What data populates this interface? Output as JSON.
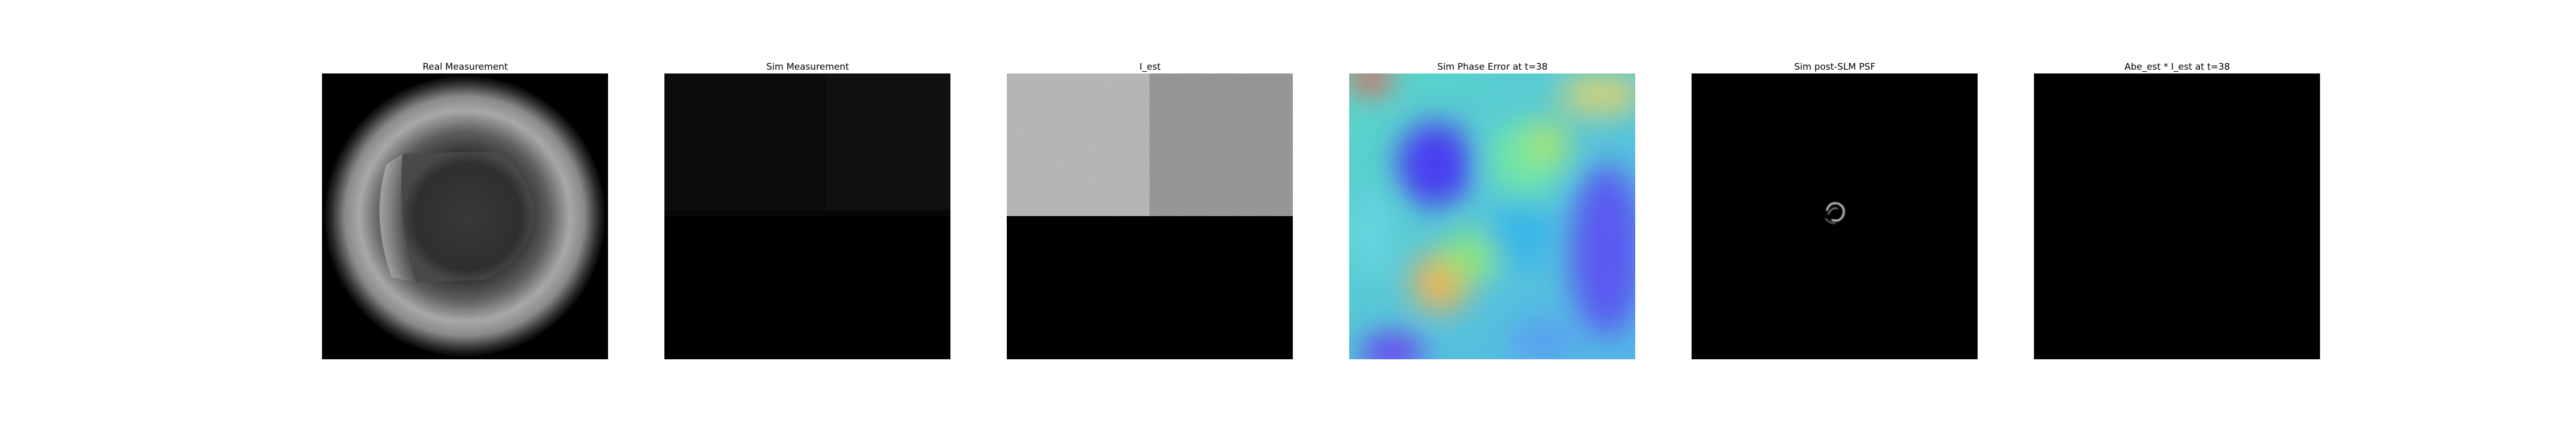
{
  "figure": {
    "panels": [
      {
        "title": "Real Measurement",
        "kind": "grayscale-intensity"
      },
      {
        "title": "Sim Measurement",
        "kind": "grayscale-intensity"
      },
      {
        "title": "I_est",
        "kind": "grayscale-intensity"
      },
      {
        "title": "Sim Phase Error at t=38",
        "kind": "rainbow-colormap"
      },
      {
        "title": "Sim post-SLM PSF",
        "kind": "grayscale-intensity"
      },
      {
        "title": "Abe_est * I_est at t=38",
        "kind": "grayscale-intensity"
      }
    ]
  }
}
